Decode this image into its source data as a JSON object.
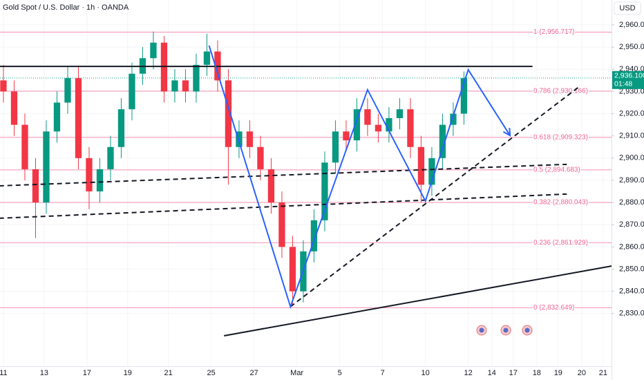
{
  "chart_data": {
    "type": "candlestick",
    "title": "Gold Spot / U.S. Dollar · 1h · OANDA",
    "currency": "USD",
    "x": [
      0,
      0.5,
      1,
      1.5,
      2,
      2.5,
      3,
      3.5,
      4,
      4.5,
      5,
      5.5,
      6,
      6.5,
      7,
      7.5,
      8,
      8.5,
      9,
      9.5,
      10,
      10.5,
      11,
      11.5,
      12,
      12.5,
      13,
      13.5,
      14,
      14.5,
      15,
      15.5,
      16,
      16.5,
      17,
      17.5,
      18,
      18.5,
      19,
      19.5,
      20,
      20.5,
      21,
      21.5
    ],
    "open": [
      2935,
      2930,
      2915,
      2895,
      2880,
      2912,
      2925,
      2936,
      2900,
      2885,
      2895,
      2905,
      2922,
      2938,
      2945,
      2952,
      2930,
      2935,
      2930,
      2942,
      2948,
      2935,
      2905,
      2912,
      2905,
      2895,
      2880,
      2860,
      2840,
      2858,
      2872,
      2898,
      2912,
      2908,
      2922,
      2915,
      2912,
      2918,
      2922,
      2905,
      2888,
      2900,
      2915,
      2920
    ],
    "high": [
      2942,
      2935,
      2920,
      2900,
      2917,
      2930,
      2941,
      2941,
      2905,
      2900,
      2910,
      2927,
      2943,
      2950,
      2957,
      2955,
      2940,
      2940,
      2947,
      2956,
      2953,
      2940,
      2917,
      2917,
      2910,
      2900,
      2885,
      2865,
      2863,
      2877,
      2903,
      2917,
      2917,
      2927,
      2927,
      2920,
      2923,
      2927,
      2927,
      2910,
      2905,
      2920,
      2925,
      2939
    ],
    "low": [
      2925,
      2910,
      2890,
      2864,
      2875,
      2907,
      2920,
      2895,
      2877,
      2880,
      2890,
      2900,
      2917,
      2933,
      2940,
      2925,
      2925,
      2925,
      2925,
      2937,
      2930,
      2888,
      2900,
      2900,
      2890,
      2875,
      2855,
      2834,
      2835,
      2853,
      2867,
      2893,
      2903,
      2903,
      2910,
      2907,
      2907,
      2913,
      2900,
      2880,
      2883,
      2895,
      2910,
      2915
    ],
    "close": [
      2930,
      2915,
      2895,
      2880,
      2912,
      2925,
      2936,
      2900,
      2885,
      2895,
      2905,
      2922,
      2938,
      2945,
      2952,
      2930,
      2935,
      2930,
      2942,
      2948,
      2935,
      2905,
      2912,
      2905,
      2895,
      2880,
      2860,
      2840,
      2858,
      2872,
      2898,
      2912,
      2908,
      2922,
      2915,
      2912,
      2918,
      2922,
      2905,
      2888,
      2900,
      2915,
      2920,
      2936
    ],
    "up_color": "#089981",
    "down_color": "#f23645",
    "xlim": [
      -0.16,
      28.39
    ],
    "ylim": [
      2806.3,
      2971.2
    ],
    "xticks": [
      {
        "value": 0,
        "label": "11"
      },
      {
        "value": 1.9,
        "label": "13"
      },
      {
        "value": 3.9,
        "label": "17"
      },
      {
        "value": 5.8,
        "label": "19"
      },
      {
        "value": 7.7,
        "label": "21"
      },
      {
        "value": 9.7,
        "label": "25"
      },
      {
        "value": 11.7,
        "label": "27"
      },
      {
        "value": 13.7,
        "label": "Mar"
      },
      {
        "value": 15.7,
        "label": "5"
      },
      {
        "value": 17.7,
        "label": "7"
      },
      {
        "value": 19.7,
        "label": "10"
      },
      {
        "value": 21.7,
        "label": "12"
      },
      {
        "value": 22.8,
        "label": "14"
      },
      {
        "value": 23.8,
        "label": "17"
      },
      {
        "value": 24.9,
        "label": "18"
      },
      {
        "value": 25.9,
        "label": "19"
      },
      {
        "value": 27,
        "label": "20"
      },
      {
        "value": 28,
        "label": "21"
      }
    ],
    "yticks": [
      {
        "value": 2830,
        "label": "2,830.000"
      },
      {
        "value": 2840,
        "label": "2,840.000"
      },
      {
        "value": 2850,
        "label": "2,850.000"
      },
      {
        "value": 2860,
        "label": "2,860.000"
      },
      {
        "value": 2870,
        "label": "2,870.000"
      },
      {
        "value": 2880,
        "label": "2,880.000"
      },
      {
        "value": 2890,
        "label": "2,890.000"
      },
      {
        "value": 2900,
        "label": "2,900.000"
      },
      {
        "value": 2910,
        "label": "2,910.000"
      },
      {
        "value": 2920,
        "label": "2,920.000"
      },
      {
        "value": 2930,
        "label": "2,930.000"
      },
      {
        "value": 2940,
        "label": "2,940.000"
      },
      {
        "value": 2950,
        "label": "2,950.000"
      },
      {
        "value": 2960,
        "label": "2,960.000"
      }
    ],
    "last_price": {
      "value": 2936.1,
      "label": "2,936.100"
    },
    "countdown": "01:48",
    "price_color": "#089981",
    "fib_color": "#f48fb1",
    "fib_levels": [
      {
        "value": 2956.717,
        "label": "1 (2,956.717)"
      },
      {
        "value": 2930.166,
        "label": "0.786 (2,930.166)"
      },
      {
        "value": 2909.323,
        "label": "0.618 (2,909.323)"
      },
      {
        "value": 2894.683,
        "label": "0.5 (2,894.683)"
      },
      {
        "value": 2880.043,
        "label": "0.382 (2,880.043)"
      },
      {
        "value": 2861.929,
        "label": "0.236 (2,861.929)"
      },
      {
        "value": 2832.649,
        "label": "0 (2,832.649)"
      }
    ],
    "drawings": [
      {
        "color": "#131722",
        "dashed": false,
        "x": [
          -0.2,
          24.7
        ],
        "y": [
          2941.3,
          2941.3
        ]
      },
      {
        "color": "#131722",
        "dashed": true,
        "x": [
          -0.2,
          26.3
        ],
        "y": [
          2887.5,
          2897.2
        ]
      },
      {
        "color": "#131722",
        "dashed": true,
        "x": [
          -0.2,
          26.3
        ],
        "y": [
          2872.9,
          2883.8
        ]
      },
      {
        "color": "#131722",
        "dashed": true,
        "x": [
          13.4,
          26.9
        ],
        "y": [
          2833.1,
          2932.3
        ]
      },
      {
        "color": "#131722",
        "dashed": false,
        "x": [
          10.3,
          28.4
        ],
        "y": [
          2820.0,
          2851.4
        ]
      },
      {
        "color": "#2962ff",
        "dashed": false,
        "arrow": true,
        "x": [
          9.6,
          13.4,
          17.0,
          19.7,
          21.7,
          23.65
        ],
        "y": [
          2950.7,
          2833.1,
          2930.8,
          2880.7,
          2939.8,
          2910.2
        ]
      }
    ]
  }
}
